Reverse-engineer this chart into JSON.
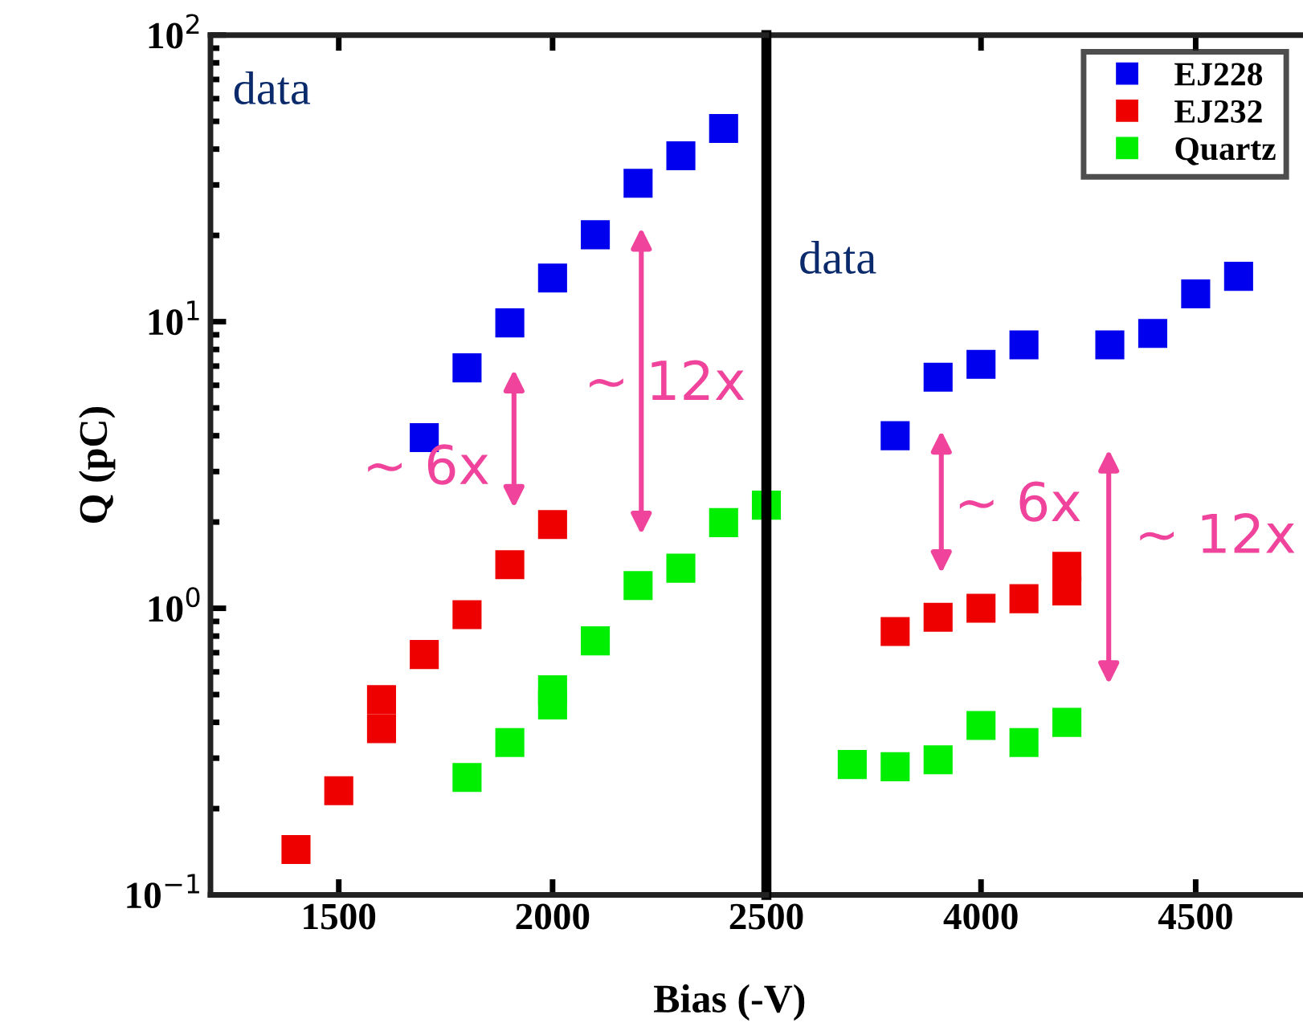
{
  "chart_data": [
    {
      "type": "scatter",
      "xlabel": "Bias (-V)",
      "ylabel": "Q (pC)",
      "log": "y",
      "marker": "square",
      "legend": false,
      "tick_labels": "xy",
      "xlim": [
        1200,
        2500
      ],
      "xticks": [
        1500,
        2000,
        2500
      ],
      "ylim": [
        0.1,
        100
      ],
      "yticks": [
        {
          "value": 0.1,
          "label": "10$^{−1}$"
        },
        {
          "value": 1,
          "label": "10$^{0}$"
        },
        {
          "value": 10,
          "label": "10$^{1}$"
        },
        {
          "value": 100,
          "label": "10$^{2}$"
        }
      ],
      "annotations": [
        "data",
        "~ 6x",
        "~ 12x"
      ],
      "series": [
        {
          "color": "#0000ee",
          "x": [
            1700,
            1800,
            1900,
            2000,
            2100,
            2200,
            2300,
            2400
          ],
          "values": [
            3.94,
            6.9,
            9.9,
            14.2,
            20.1,
            30.4,
            37.9,
            47.2
          ]
        },
        {
          "color": "#ee0000",
          "x": [
            1400,
            1500,
            1600,
            1600,
            1700,
            1800,
            1900,
            2000
          ],
          "values": [
            0.144,
            0.231,
            0.48,
            0.38,
            0.69,
            0.95,
            1.42,
            1.96
          ]
        },
        {
          "color": "#00ee00",
          "x": [
            1800,
            1900,
            2000,
            2000,
            2100,
            2200,
            2300,
            2400,
            2500
          ],
          "values": [
            0.257,
            0.34,
            0.52,
            0.46,
            0.77,
            1.2,
            1.38,
            1.99,
            2.29
          ]
        }
      ]
    },
    {
      "type": "scatter",
      "log": "y",
      "marker": "square",
      "legend": "top right",
      "tick_labels": "x",
      "xlim": [
        3500,
        4750
      ],
      "xticks": [
        4000,
        4500
      ],
      "ylim": [
        0.1,
        100
      ],
      "annotations": [
        "data",
        "~ 6x",
        "~ 12x"
      ],
      "series": [
        {
          "name": "EJ228",
          "color": "#0000ee",
          "x": [
            3800,
            3900,
            4000,
            4100,
            4300,
            4400,
            4500,
            4600
          ],
          "values": [
            4.0,
            6.4,
            7.1,
            8.3,
            8.3,
            9.1,
            12.5,
            14.4
          ]
        },
        {
          "name": "EJ232",
          "color": "#ee0000",
          "x": [
            3800,
            3900,
            4000,
            4100,
            4200,
            4200
          ],
          "values": [
            0.83,
            0.93,
            1.0,
            1.08,
            1.4,
            1.15
          ]
        },
        {
          "name": "Quartz",
          "color": "#00ee00",
          "x": [
            3700,
            3800,
            3900,
            4000,
            4100,
            4200
          ],
          "values": [
            0.285,
            0.28,
            0.296,
            0.39,
            0.34,
            0.4
          ]
        }
      ]
    }
  ]
}
